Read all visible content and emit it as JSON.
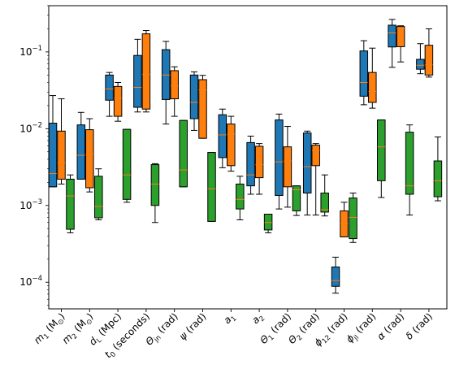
{
  "chart_data": {
    "type": "box",
    "yscale": "log",
    "ylim": [
      4.5e-05,
      0.4
    ],
    "grid": false,
    "title": "",
    "xlabel": "",
    "ylabel": "",
    "yticks": [
      {
        "value": 0.0001,
        "base": "10",
        "exp": "−4"
      },
      {
        "value": 0.001,
        "base": "10",
        "exp": "−3"
      },
      {
        "value": 0.01,
        "base": "10",
        "exp": "−2"
      },
      {
        "value": 0.1,
        "base": "10",
        "exp": "−1"
      }
    ],
    "categories": [
      {
        "main": "m",
        "sub": "1",
        "rest": " (M",
        "sub2": "⊙",
        "tail": ")"
      },
      {
        "main": "m",
        "sub": "2",
        "rest": " (M",
        "sub2": "⊙",
        "tail": ")"
      },
      {
        "main": "d",
        "sub": "L",
        "rest": " (Mpc)",
        "sub2": "",
        "tail": ""
      },
      {
        "main": "t",
        "sub": "0",
        "rest": " (seconds)",
        "sub2": "",
        "tail": ""
      },
      {
        "main": "Θ",
        "sub": "jn",
        "rest": " (rad)",
        "sub2": "",
        "tail": ""
      },
      {
        "main": "ψ",
        "sub": "",
        "rest": " (rad)",
        "sub2": "",
        "tail": ""
      },
      {
        "main": "a",
        "sub": "1",
        "rest": "",
        "sub2": "",
        "tail": ""
      },
      {
        "main": "a",
        "sub": "2",
        "rest": "",
        "sub2": "",
        "tail": ""
      },
      {
        "main": "Θ",
        "sub": "1",
        "rest": " (rad)",
        "sub2": "",
        "tail": ""
      },
      {
        "main": "Θ",
        "sub": "2",
        "rest": " (rad)",
        "sub2": "",
        "tail": ""
      },
      {
        "main": "ϕ",
        "sub": "12",
        "rest": " (rad)",
        "sub2": "",
        "tail": ""
      },
      {
        "main": "ϕ",
        "sub": "jl",
        "rest": " (rad)",
        "sub2": "",
        "tail": ""
      },
      {
        "main": "α",
        "sub": "",
        "rest": " (rad)",
        "sub2": "",
        "tail": ""
      },
      {
        "main": "δ",
        "sub": "",
        "rest": " (rad)",
        "sub2": "",
        "tail": ""
      }
    ],
    "series": [
      {
        "color": "#1f77b4",
        "boxes": [
          {
            "whislo": 0.00175,
            "q1": 0.00175,
            "med": 0.0026,
            "q3": 0.0118,
            "whishi": 0.027
          },
          {
            "whislo": 0.0022,
            "q1": 0.0022,
            "med": 0.0045,
            "q3": 0.0112,
            "whishi": 0.0163
          },
          {
            "whislo": 0.0145,
            "q1": 0.0235,
            "med": 0.033,
            "q3": 0.05,
            "whishi": 0.054
          },
          {
            "whislo": 0.0165,
            "q1": 0.019,
            "med": 0.0345,
            "q3": 0.09,
            "whishi": 0.146
          },
          {
            "whislo": 0.0115,
            "q1": 0.024,
            "med": 0.05,
            "q3": 0.107,
            "whishi": 0.137
          },
          {
            "whislo": 0.0095,
            "q1": 0.0135,
            "med": 0.022,
            "q3": 0.05,
            "whishi": 0.055
          },
          {
            "whislo": 0.0031,
            "q1": 0.0042,
            "med": 0.0083,
            "q3": 0.0152,
            "whishi": 0.018
          },
          {
            "whislo": 0.0014,
            "q1": 0.0018,
            "med": 0.0025,
            "q3": 0.0066,
            "whishi": 0.008
          },
          {
            "whislo": 0.0009,
            "q1": 0.00135,
            "med": 0.0037,
            "q3": 0.013,
            "whishi": 0.0155
          },
          {
            "whislo": 0.00075,
            "q1": 0.00145,
            "med": 0.0032,
            "q3": 0.0088,
            "whishi": 0.0093
          },
          {
            "whislo": 7.2e-05,
            "q1": 8.85e-05,
            "med": 0.000105,
            "q3": 0.000158,
            "whishi": 0.000212
          },
          {
            "whislo": 0.0205,
            "q1": 0.0265,
            "med": 0.04,
            "q3": 0.103,
            "whishi": 0.14
          },
          {
            "whislo": 0.063,
            "q1": 0.116,
            "med": 0.177,
            "q3": 0.223,
            "whishi": 0.265
          },
          {
            "whislo": 0.052,
            "q1": 0.0595,
            "med": 0.067,
            "q3": 0.08,
            "whishi": 0.128
          }
        ]
      },
      {
        "color": "#ff7f0e",
        "boxes": [
          {
            "whislo": 0.0019,
            "q1": 0.0022,
            "med": 0.0036,
            "q3": 0.0093,
            "whishi": 0.0245
          },
          {
            "whislo": 0.0015,
            "q1": 0.0017,
            "med": 0.0047,
            "q3": 0.0097,
            "whishi": 0.0135
          },
          {
            "whislo": 0.0125,
            "q1": 0.0145,
            "med": 0.025,
            "q3": 0.0355,
            "whishi": 0.04
          },
          {
            "whislo": 0.0165,
            "q1": 0.018,
            "med": 0.051,
            "q3": 0.172,
            "whishi": 0.19
          },
          {
            "whislo": 0.0145,
            "q1": 0.0245,
            "med": 0.036,
            "q3": 0.057,
            "whishi": 0.064
          },
          {
            "whislo": 0.0075,
            "q1": 0.0075,
            "med": 0.032,
            "q3": 0.0435,
            "whishi": 0.0495
          },
          {
            "whislo": 0.0028,
            "q1": 0.0033,
            "med": 0.0085,
            "q3": 0.0115,
            "whishi": 0.0145
          },
          {
            "whislo": 0.0014,
            "q1": 0.0023,
            "med": 0.0034,
            "q3": 0.0059,
            "whishi": 0.0064
          },
          {
            "whislo": 0.00095,
            "q1": 0.00175,
            "med": 0.0038,
            "q3": 0.0058,
            "whishi": 0.0107
          },
          {
            "whislo": 0.00075,
            "q1": 0.0033,
            "med": 0.0052,
            "q3": 0.0061,
            "whishi": 0.0064
          },
          {
            "whislo": 0.00039,
            "q1": 0.00039,
            "med": 0.00058,
            "q3": 0.00085,
            "whishi": 0.0011
          },
          {
            "whislo": 0.0185,
            "q1": 0.022,
            "med": 0.0305,
            "q3": 0.054,
            "whishi": 0.112
          },
          {
            "whislo": 0.074,
            "q1": 0.117,
            "med": 0.201,
            "q3": 0.214,
            "whishi": 0.219
          },
          {
            "whislo": 0.047,
            "q1": 0.05,
            "med": 0.068,
            "q3": 0.122,
            "whishi": 0.2
          }
        ]
      },
      {
        "color": "#2ca02c",
        "boxes": [
          {
            "whislo": 0.00044,
            "q1": 0.00049,
            "med": 0.00133,
            "q3": 0.0022,
            "whishi": 0.0025
          },
          {
            "whislo": 0.00065,
            "q1": 0.00069,
            "med": 0.00097,
            "q3": 0.0024,
            "whishi": 0.003
          },
          {
            "whislo": 0.0011,
            "q1": 0.0012,
            "med": 0.0025,
            "q3": 0.0098,
            "whishi": 0.0098
          },
          {
            "whislo": 0.0006,
            "q1": 0.001,
            "med": 0.0019,
            "q3": 0.0034,
            "whishi": 0.0035
          },
          {
            "whislo": 0.00175,
            "q1": 0.00175,
            "med": 0.0029,
            "q3": 0.0128,
            "whishi": 0.0128
          },
          {
            "whislo": 0.00062,
            "q1": 0.00062,
            "med": 0.00165,
            "q3": 0.0049,
            "whishi": 0.0049
          },
          {
            "whislo": 0.00065,
            "q1": 0.0009,
            "med": 0.0012,
            "q3": 0.0019,
            "whishi": 0.0024
          },
          {
            "whislo": 0.00044,
            "q1": 0.00048,
            "med": 0.0006,
            "q3": 0.00077,
            "whishi": 0.00077
          },
          {
            "whislo": 0.00074,
            "q1": 0.00085,
            "med": 0.0016,
            "q3": 0.0018,
            "whishi": 0.0018
          },
          {
            "whislo": 0.00073,
            "q1": 0.00082,
            "med": 0.00088,
            "q3": 0.00145,
            "whishi": 0.0025
          },
          {
            "whislo": 0.00033,
            "q1": 0.00037,
            "med": 0.0007,
            "q3": 0.00125,
            "whishi": 0.00145
          },
          {
            "whislo": 0.00127,
            "q1": 0.0021,
            "med": 0.0058,
            "q3": 0.013,
            "whishi": 0.013
          },
          {
            "whislo": 0.00075,
            "q1": 0.0014,
            "med": 0.0018,
            "q3": 0.009,
            "whishi": 0.0112
          },
          {
            "whislo": 0.00115,
            "q1": 0.0013,
            "med": 0.0021,
            "q3": 0.0038,
            "whishi": 0.0078
          }
        ]
      }
    ]
  }
}
